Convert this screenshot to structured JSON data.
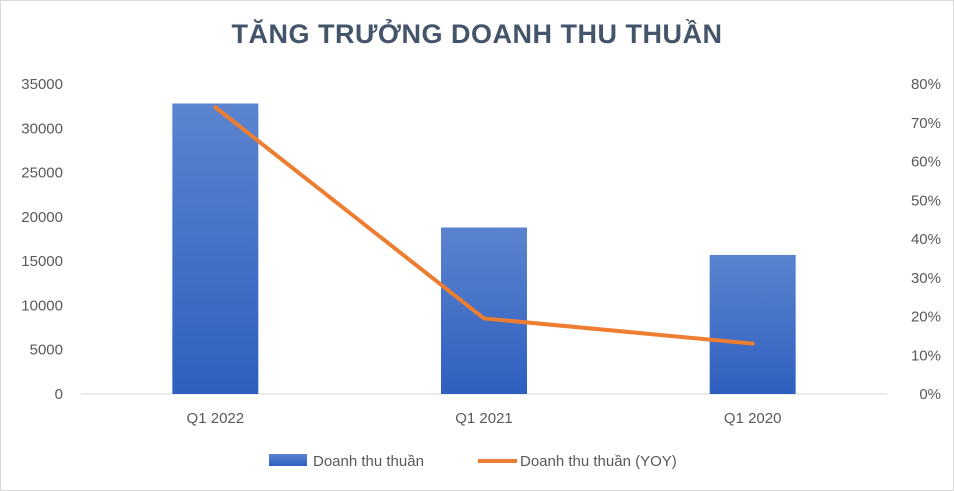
{
  "chart_data": {
    "type": "bar",
    "title": "TĂNG TRƯỞNG DOANH THU THUẦN",
    "categories": [
      "Q1 2022",
      "Q1 2021",
      "Q1 2020"
    ],
    "series": [
      {
        "name": "Doanh thu thuần",
        "type": "bar",
        "axis": "left",
        "values": [
          32800,
          18800,
          15700
        ]
      },
      {
        "name": "Doanh thu thuần (YOY)",
        "type": "line",
        "axis": "right",
        "values": [
          0.74,
          0.195,
          0.13
        ]
      }
    ],
    "y_left": {
      "min": 0,
      "max": 35000,
      "ticks": [
        "0",
        "5000",
        "10000",
        "15000",
        "20000",
        "25000",
        "30000",
        "35000"
      ]
    },
    "y_right": {
      "min": 0,
      "max": 0.8,
      "ticks": [
        "0%",
        "10%",
        "20%",
        "30%",
        "40%",
        "50%",
        "60%",
        "70%",
        "80%"
      ]
    },
    "grid": false,
    "legend": "bottom",
    "colors": {
      "bar_top": "#5b84cf",
      "bar_bottom": "#2f5fbf",
      "line": "#ed7d31",
      "axis": "#d9d9d9",
      "text": "#595959",
      "title": "#44546a"
    }
  }
}
